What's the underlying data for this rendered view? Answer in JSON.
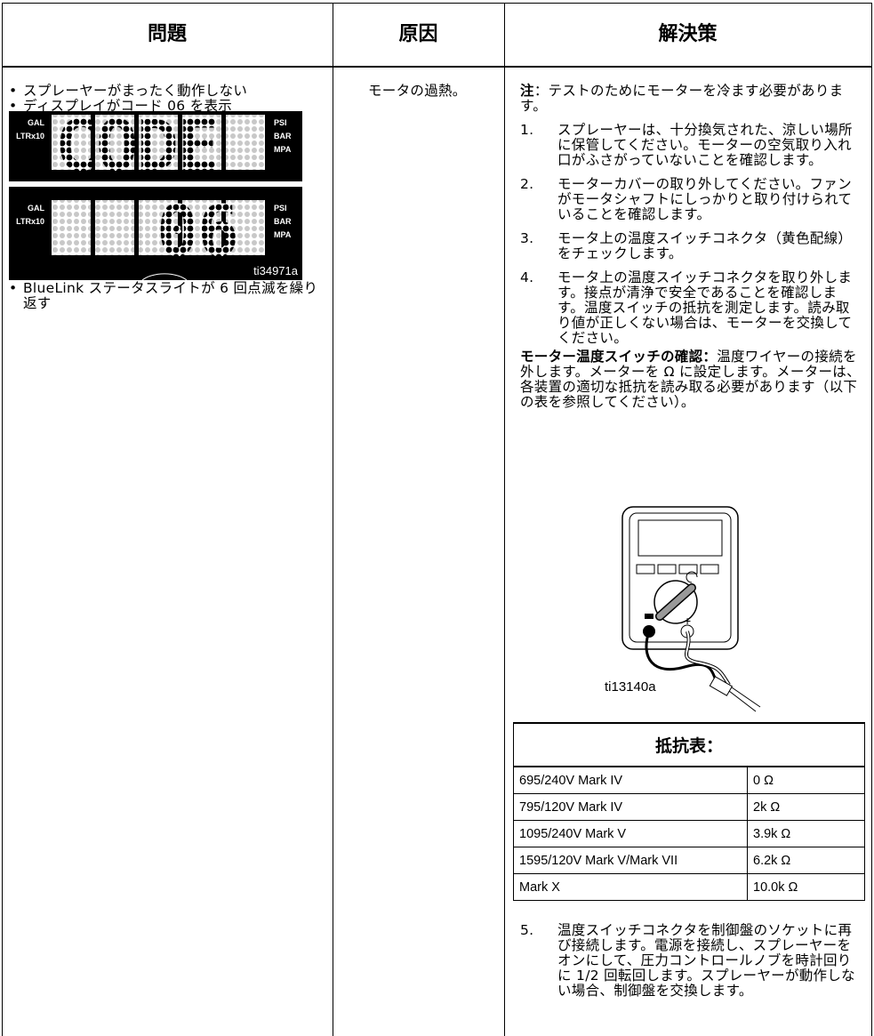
{
  "header": {
    "problem": "問題",
    "cause": "原因",
    "solution": "解決策"
  },
  "problem": {
    "bullets": [
      "スプレーヤーがまったく動作しない",
      "ディスプレイがコード 06 を表示"
    ],
    "display": {
      "left_labels": [
        "GAL",
        "LTRx10"
      ],
      "right_labels": [
        "PSI",
        "BAR",
        "MPA"
      ],
      "top_text": "CODE",
      "bottom_text": "06",
      "figure_id": "ti34971a"
    },
    "bullet_after": "BlueLink ステータスライトが 6 回点滅を繰り返す"
  },
  "cause": "モータの過熱。",
  "solution": {
    "note_label": "注",
    "note_text": "：テストのためにモーターを冷ます必要があります。",
    "steps": [
      {
        "number": "1.",
        "text": "スプレーヤーは、十分換気された、涼しい場所に保管してください。モーターの空気取り入れ口がふさがっていないことを確認します。"
      },
      {
        "number": "2.",
        "text": "モーターカバーの取り外してください。ファンがモータシャフトにしっかりと取り付けられていることを確認します。"
      },
      {
        "number": "3.",
        "text": "モータ上の温度スイッチコネクタ（黄色配線）をチェックします。"
      },
      {
        "number": "4.",
        "text": "モータ上の温度スイッチコネクタを取り外します。接点が清浄で安全であることを確認します。温度スイッチの抵抗を測定します。読み取り値が正しくない場合は、モーターを交換してください。"
      }
    ],
    "check_label": "モーター温度スイッチの確認：",
    "check_text": "温度ワイヤーの接続を外します。メーターを Ω に設定します。メーターは、各装置の適切な抵抗を読み取る必要があります（以下の表を参照してください）。",
    "figure_id": "ti13140a",
    "resistance_table": {
      "title": "抵抗表：",
      "rows": [
        [
          "695/240V  Mark IV",
          "0  Ω"
        ],
        [
          "795/120V  Mark IV",
          "2k  Ω"
        ],
        [
          "1095/240V  Mark V",
          "3.9k  Ω"
        ],
        [
          "1595/120V  Mark V/Mark VII",
          "6.2k  Ω"
        ],
        [
          "Mark X",
          "10.0k  Ω"
        ]
      ]
    },
    "final_step": {
      "number": "5.",
      "text": "温度スイッチコネクタを制御盤のソケットに再び接続します。電源を接続し、スプレーヤーをオンにして、圧力コントロールノブを時計回りに 1/2 回転回します。スプレーヤーが動作しない場合、制御盤を交換します。"
    }
  }
}
